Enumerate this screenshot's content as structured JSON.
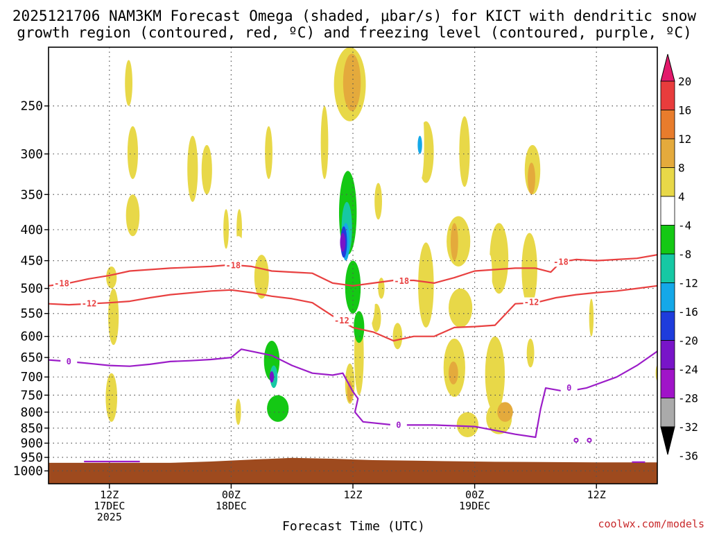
{
  "title_line1": "2025121706 NAM3KM Forecast Omega (shaded, μbar/s) for KICT with dendritic snow",
  "title_line2": "growth region (contoured, red, ºC) and freezing level (contoured, purple, ºC)",
  "credit": "coolwx.com/models",
  "chart_data": {
    "type": "heatmap",
    "title": "2025121706 NAM3KM Forecast Omega (shaded, μbar/s) for KICT with dendritic snow growth region (contoured, red, ºC) and freezing level (contoured, purple, ºC)",
    "xlabel": "Forecast Time (UTC)",
    "ylabel": "",
    "x_range_hours": [
      6,
      66
    ],
    "y_scale": "log-pressure",
    "y_range_hPa": [
      200,
      1050
    ],
    "y_ticks": [
      "250",
      "300",
      "350",
      "400",
      "450",
      "500",
      "550",
      "600",
      "650",
      "700",
      "750",
      "800",
      "850",
      "900",
      "950",
      "1000"
    ],
    "x_ticks": [
      {
        "hour": 12,
        "lines": [
          "12Z",
          "17DEC",
          "2025"
        ]
      },
      {
        "hour": 24,
        "lines": [
          "00Z",
          "18DEC"
        ]
      },
      {
        "hour": 36,
        "lines": [
          "12Z"
        ]
      },
      {
        "hour": 48,
        "lines": [
          "00Z",
          "19DEC"
        ]
      },
      {
        "hour": 60,
        "lines": [
          "12Z"
        ]
      }
    ],
    "grid": true,
    "colorbar": {
      "levels": [
        "20",
        "16",
        "12",
        "8",
        "4",
        "-4",
        "-8",
        "-12",
        "-16",
        "-20",
        "-24",
        "-28",
        "-32",
        "-36"
      ],
      "colors": [
        "#e2196b",
        "#e83c3c",
        "#e87c2c",
        "#e4aa3c",
        "#e8d848",
        "#ffffff",
        "#14c814",
        "#16c8a4",
        "#14a8e8",
        "#1e3cdc",
        "#7814c8",
        "#a014c8",
        "#aaaaaa",
        "#000000"
      ]
    },
    "omega_cells": [
      {
        "t": 14.3,
        "p": 300,
        "dt": 0.9,
        "dp": 60,
        "v": 4
      },
      {
        "t": 14.3,
        "p": 380,
        "dt": 1.2,
        "dp": 60,
        "v": 4
      },
      {
        "t": 12.2,
        "p": 480,
        "dt": 0.9,
        "dp": 40,
        "v": 4
      },
      {
        "t": 12.4,
        "p": 560,
        "dt": 0.9,
        "dp": 120,
        "v": 4
      },
      {
        "t": 12.2,
        "p": 760,
        "dt": 1.0,
        "dp": 140,
        "v": 4
      },
      {
        "t": 13.9,
        "p": 230,
        "dt": 0.6,
        "dp": 40,
        "v": 4
      },
      {
        "t": 20.2,
        "p": 320,
        "dt": 0.9,
        "dp": 80,
        "v": 4
      },
      {
        "t": 21.6,
        "p": 320,
        "dt": 0.9,
        "dp": 60,
        "v": 4
      },
      {
        "t": 23.5,
        "p": 400,
        "dt": 0.4,
        "dp": 60,
        "v": 4
      },
      {
        "t": 24.8,
        "p": 400,
        "dt": 0.4,
        "dp": 60,
        "v": 4
      },
      {
        "t": 24.7,
        "p": 800,
        "dt": 0.4,
        "dp": 80,
        "v": 4
      },
      {
        "t": 27.7,
        "p": 300,
        "dt": 0.6,
        "dp": 60,
        "v": 4
      },
      {
        "t": 27.0,
        "p": 480,
        "dt": 1.3,
        "dp": 80,
        "v": 4
      },
      {
        "t": 33.2,
        "p": 290,
        "dt": 0.6,
        "dp": 80,
        "v": 4
      },
      {
        "t": 35.7,
        "p": 230,
        "dt": 3.0,
        "dp": 70,
        "v": 4
      },
      {
        "t": 35.9,
        "p": 230,
        "dt": 1.6,
        "dp": 50,
        "v": 8
      },
      {
        "t": 36.6,
        "p": 650,
        "dt": 0.8,
        "dp": 200,
        "v": 4
      },
      {
        "t": 38.5,
        "p": 360,
        "dt": 0.6,
        "dp": 50,
        "v": 4
      },
      {
        "t": 38.3,
        "p": 560,
        "dt": 0.8,
        "dp": 60,
        "v": 4
      },
      {
        "t": 38.8,
        "p": 500,
        "dt": 0.5,
        "dp": 40,
        "v": 4
      },
      {
        "t": 35.7,
        "p": 720,
        "dt": 0.8,
        "dp": 110,
        "v": 4
      },
      {
        "t": 35.7,
        "p": 740,
        "dt": 0.4,
        "dp": 60,
        "v": 8
      },
      {
        "t": 43.2,
        "p": 300,
        "dt": 1.4,
        "dp": 70,
        "v": 4
      },
      {
        "t": 43.2,
        "p": 500,
        "dt": 1.4,
        "dp": 160,
        "v": 4
      },
      {
        "t": 40.4,
        "p": 600,
        "dt": 0.8,
        "dp": 60,
        "v": 4
      },
      {
        "t": 47.0,
        "p": 300,
        "dt": 0.9,
        "dp": 80,
        "v": 4
      },
      {
        "t": 46.4,
        "p": 420,
        "dt": 2.2,
        "dp": 80,
        "v": 4
      },
      {
        "t": 46.0,
        "p": 420,
        "dt": 0.6,
        "dp": 60,
        "v": 8
      },
      {
        "t": 46.6,
        "p": 540,
        "dt": 2.2,
        "dp": 80,
        "v": 4
      },
      {
        "t": 46.0,
        "p": 680,
        "dt": 2.0,
        "dp": 150,
        "v": 4
      },
      {
        "t": 45.9,
        "p": 690,
        "dt": 0.8,
        "dp": 60,
        "v": 8
      },
      {
        "t": 47.3,
        "p": 840,
        "dt": 2.0,
        "dp": 80,
        "v": 4
      },
      {
        "t": 50.4,
        "p": 450,
        "dt": 1.7,
        "dp": 120,
        "v": 4
      },
      {
        "t": 50.0,
        "p": 700,
        "dt": 1.8,
        "dp": 200,
        "v": 4
      },
      {
        "t": 50.4,
        "p": 820,
        "dt": 2.4,
        "dp": 100,
        "v": 4
      },
      {
        "t": 51.0,
        "p": 800,
        "dt": 1.4,
        "dp": 60,
        "v": 8
      },
      {
        "t": 53.7,
        "p": 320,
        "dt": 1.4,
        "dp": 60,
        "v": 4
      },
      {
        "t": 53.6,
        "p": 330,
        "dt": 0.6,
        "dp": 40,
        "v": 8
      },
      {
        "t": 53.4,
        "p": 470,
        "dt": 1.4,
        "dp": 130,
        "v": 4
      },
      {
        "t": 53.5,
        "p": 640,
        "dt": 0.6,
        "dp": 70,
        "v": 4
      },
      {
        "t": 59.5,
        "p": 560,
        "dt": 0.3,
        "dp": 80,
        "v": 4
      },
      {
        "t": 66.0,
        "p": 690,
        "dt": 0.2,
        "dp": 40,
        "v": 4
      },
      {
        "t": 24.7,
        "p": 450,
        "dt": 1.4,
        "dp": 80,
        "v": -4
      },
      {
        "t": 27.1,
        "p": 580,
        "dt": 2.4,
        "dp": 120,
        "v": -4
      },
      {
        "t": 28.5,
        "p": 730,
        "dt": 3.2,
        "dp": 220,
        "v": -4
      },
      {
        "t": 29.0,
        "p": 860,
        "dt": 2.8,
        "dp": 80,
        "v": -4
      },
      {
        "t": 30.0,
        "p": 480,
        "dt": 1.4,
        "dp": 90,
        "v": -4
      },
      {
        "t": 31.0,
        "p": 560,
        "dt": 1.6,
        "dp": 100,
        "v": -4
      },
      {
        "t": 35.3,
        "p": 330,
        "dt": 2.2,
        "dp": 120,
        "v": -4
      },
      {
        "t": 35.6,
        "p": 460,
        "dt": 2.6,
        "dp": 160,
        "v": -4
      },
      {
        "t": 36.8,
        "p": 440,
        "dt": 1.6,
        "dp": 130,
        "v": -4
      },
      {
        "t": 37.3,
        "p": 530,
        "dt": 1.6,
        "dp": 110,
        "v": -4
      },
      {
        "t": 35.3,
        "p": 600,
        "dt": 1.0,
        "dp": 90,
        "v": -4
      },
      {
        "t": 42.7,
        "p": 290,
        "dt": 0.5,
        "dp": 80,
        "v": -4
      },
      {
        "t": 49.5,
        "p": 480,
        "dt": 0.3,
        "dp": 80,
        "v": -4
      },
      {
        "t": 56.5,
        "p": 840,
        "dt": 0.3,
        "dp": 60,
        "v": -4
      },
      {
        "t": 64.0,
        "p": 905,
        "dt": 1.0,
        "dp": 30,
        "v": -4
      },
      {
        "t": 28.0,
        "p": 660,
        "dt": 1.4,
        "dp": 100,
        "v": -8
      },
      {
        "t": 28.6,
        "p": 790,
        "dt": 2.0,
        "dp": 80,
        "v": -8
      },
      {
        "t": 35.5,
        "p": 380,
        "dt": 1.6,
        "dp": 120,
        "v": -8
      },
      {
        "t": 36.0,
        "p": 500,
        "dt": 1.4,
        "dp": 100,
        "v": -8
      },
      {
        "t": 36.6,
        "p": 580,
        "dt": 0.9,
        "dp": 70,
        "v": -8
      },
      {
        "t": 35.4,
        "p": 400,
        "dt": 0.9,
        "dp": 80,
        "v": -12
      },
      {
        "t": 28.2,
        "p": 700,
        "dt": 0.6,
        "dp": 60,
        "v": -12
      },
      {
        "t": 35.3,
        "p": 420,
        "dt": 0.6,
        "dp": 60,
        "v": -16
      },
      {
        "t": 42.6,
        "p": 290,
        "dt": 0.3,
        "dp": 20,
        "v": -16
      },
      {
        "t": 35.1,
        "p": 420,
        "dt": 0.5,
        "dp": 50,
        "v": -20
      },
      {
        "t": 35.0,
        "p": 420,
        "dt": 0.4,
        "dp": 30,
        "v": -24
      },
      {
        "t": 28.0,
        "p": 700,
        "dt": 0.3,
        "dp": 30,
        "v": -24
      }
    ],
    "contours": [
      {
        "name": "-18",
        "color": "#e84040",
        "points": [
          [
            6,
            495
          ],
          [
            8,
            490
          ],
          [
            10,
            482
          ],
          [
            12,
            476
          ],
          [
            14,
            468
          ],
          [
            18,
            463
          ],
          [
            22,
            460
          ],
          [
            24,
            457
          ],
          [
            26,
            460
          ],
          [
            28,
            468
          ],
          [
            30,
            470
          ],
          [
            32,
            472
          ],
          [
            34,
            490
          ],
          [
            36,
            495
          ],
          [
            38,
            490
          ],
          [
            40,
            485
          ],
          [
            42,
            485
          ],
          [
            44,
            490
          ],
          [
            46,
            480
          ],
          [
            48,
            468
          ],
          [
            52,
            463
          ],
          [
            54,
            463
          ],
          [
            55.5,
            470
          ],
          [
            56.5,
            452
          ],
          [
            58,
            448
          ],
          [
            60,
            450
          ],
          [
            62,
            448
          ],
          [
            64,
            446
          ],
          [
            66,
            440
          ]
        ],
        "labels": [
          [
            7.3,
            491
          ],
          [
            24.2,
            458
          ],
          [
            40.8,
            486
          ],
          [
            56.5,
            452
          ]
        ]
      },
      {
        "name": "-12",
        "color": "#e84040",
        "points": [
          [
            6,
            530
          ],
          [
            8,
            532
          ],
          [
            10,
            530
          ],
          [
            12,
            528
          ],
          [
            14,
            525
          ],
          [
            16,
            518
          ],
          [
            18,
            512
          ],
          [
            22,
            505
          ],
          [
            24,
            503
          ],
          [
            26,
            508
          ],
          [
            28,
            515
          ],
          [
            30,
            520
          ],
          [
            32,
            528
          ],
          [
            34,
            555
          ],
          [
            36,
            580
          ],
          [
            38,
            590
          ],
          [
            40,
            610
          ],
          [
            42,
            600
          ],
          [
            44,
            600
          ],
          [
            46,
            580
          ],
          [
            48,
            578
          ],
          [
            50,
            575
          ],
          [
            52,
            530
          ],
          [
            54,
            528
          ],
          [
            56,
            518
          ],
          [
            58,
            512
          ],
          [
            60,
            508
          ],
          [
            62,
            505
          ],
          [
            64,
            500
          ],
          [
            66,
            495
          ]
        ],
        "labels": [
          [
            10.0,
            530
          ],
          [
            34.9,
            565
          ],
          [
            53.6,
            527
          ]
        ]
      },
      {
        "name": "0",
        "color": "#9b1cc8",
        "points": [
          [
            6,
            656
          ],
          [
            8,
            660
          ],
          [
            10,
            665
          ],
          [
            12,
            670
          ],
          [
            14,
            672
          ],
          [
            16,
            667
          ],
          [
            18,
            660
          ],
          [
            20,
            658
          ],
          [
            22,
            655
          ],
          [
            24,
            650
          ],
          [
            25,
            630
          ],
          [
            26,
            635
          ],
          [
            28,
            645
          ],
          [
            30,
            670
          ],
          [
            32,
            690
          ],
          [
            34,
            695
          ],
          [
            35,
            690
          ],
          [
            36,
            740
          ],
          [
            36.5,
            760
          ],
          [
            36.2,
            800
          ],
          [
            37,
            830
          ],
          [
            40,
            840
          ],
          [
            44,
            840
          ],
          [
            48,
            845
          ],
          [
            52,
            870
          ],
          [
            54,
            880
          ],
          [
            54.5,
            790
          ],
          [
            55,
            730
          ],
          [
            57,
            740
          ],
          [
            59,
            730
          ],
          [
            62,
            700
          ],
          [
            64,
            670
          ],
          [
            66,
            635
          ]
        ],
        "labels": [
          [
            8.0,
            660
          ],
          [
            40.5,
            840
          ],
          [
            57.3,
            730
          ]
        ]
      },
      {
        "name": "0b",
        "color": "#9b1cc8",
        "points": [
          [
            9.5,
            965
          ],
          [
            15,
            965
          ]
        ],
        "labels": []
      },
      {
        "name": "0c",
        "color": "#9b1cc8",
        "points": [
          [
            63.5,
            967
          ],
          [
            64.8,
            967
          ]
        ],
        "labels": []
      }
    ],
    "freezing_dots": [
      [
        58.0,
        890
      ],
      [
        59.3,
        890
      ]
    ],
    "terrain_top": [
      [
        6,
        970
      ],
      [
        18,
        970
      ],
      [
        22,
        965
      ],
      [
        26,
        958
      ],
      [
        30,
        952
      ],
      [
        34,
        955
      ],
      [
        38,
        960
      ],
      [
        42,
        962
      ],
      [
        50,
        966
      ],
      [
        60,
        968
      ],
      [
        66,
        968
      ]
    ],
    "terrain_color": "#9e4a1e"
  }
}
